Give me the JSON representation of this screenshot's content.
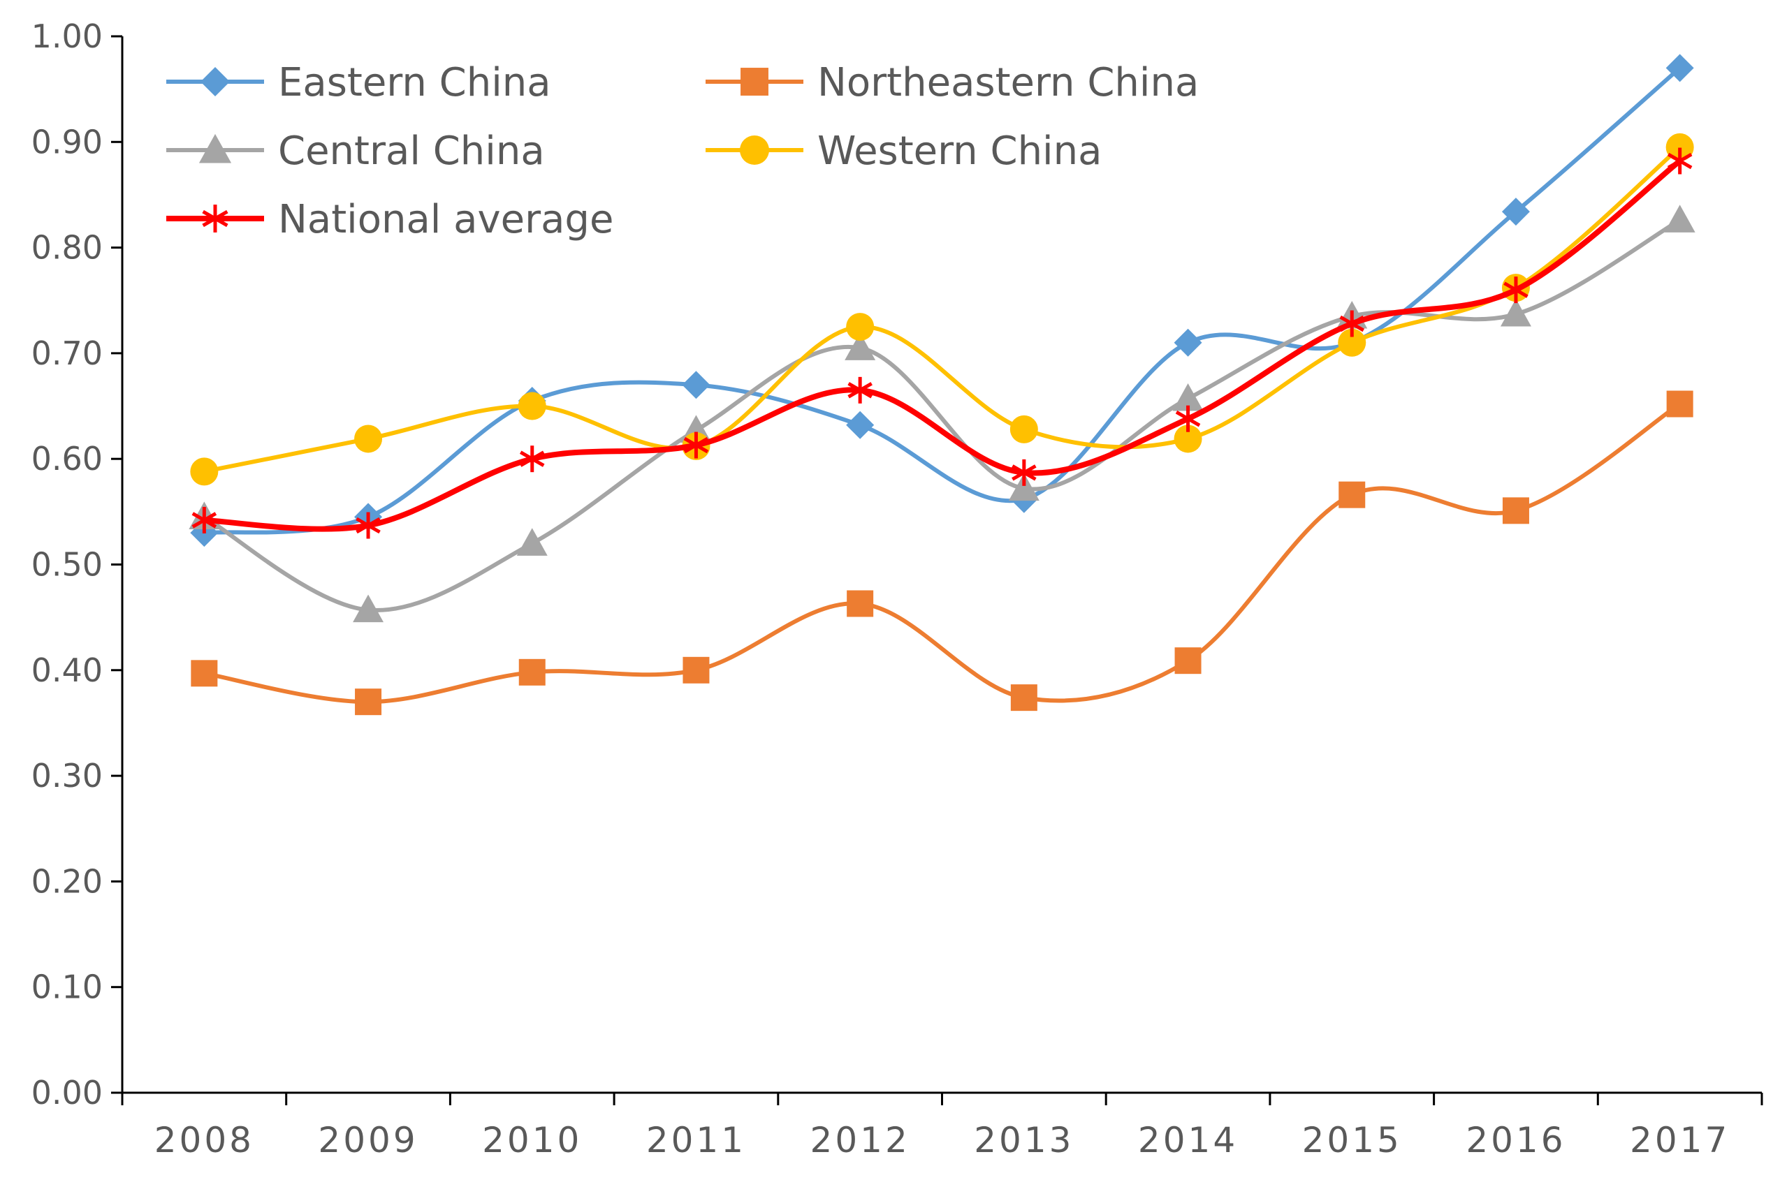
{
  "chart_data": {
    "type": "line",
    "title": "",
    "xlabel": "",
    "ylabel": "",
    "ylim": [
      0,
      1.0
    ],
    "y_ticks": [
      "0.00",
      "0.10",
      "0.20",
      "0.30",
      "0.40",
      "0.50",
      "0.60",
      "0.70",
      "0.80",
      "0.90",
      "1.00"
    ],
    "categories": [
      "2008",
      "2009",
      "2010",
      "2011",
      "2012",
      "2013",
      "2014",
      "2015",
      "2016",
      "2017"
    ],
    "legend_position": "top-left",
    "series": [
      {
        "name": "Eastern China",
        "color": "#5B9BD5",
        "marker": "diamond",
        "values": [
          0.53,
          0.545,
          0.655,
          0.67,
          0.632,
          0.562,
          0.71,
          0.71,
          0.834,
          0.97
        ]
      },
      {
        "name": "Northeastern China",
        "color": "#ED7D31",
        "marker": "square",
        "values": [
          0.397,
          0.37,
          0.398,
          0.4,
          0.463,
          0.374,
          0.409,
          0.566,
          0.551,
          0.652
        ]
      },
      {
        "name": "Central China",
        "color": "#A5A5A5",
        "marker": "triangle",
        "values": [
          0.545,
          0.457,
          0.52,
          0.627,
          0.705,
          0.572,
          0.657,
          0.735,
          0.737,
          0.826
        ]
      },
      {
        "name": "Western China",
        "color": "#FFC000",
        "marker": "circle",
        "values": [
          0.588,
          0.619,
          0.65,
          0.612,
          0.725,
          0.628,
          0.619,
          0.71,
          0.762,
          0.895
        ]
      },
      {
        "name": "National average",
        "color": "#FF0000",
        "marker": "star",
        "values": [
          0.542,
          0.537,
          0.6,
          0.613,
          0.665,
          0.587,
          0.638,
          0.728,
          0.76,
          0.882
        ]
      }
    ]
  }
}
